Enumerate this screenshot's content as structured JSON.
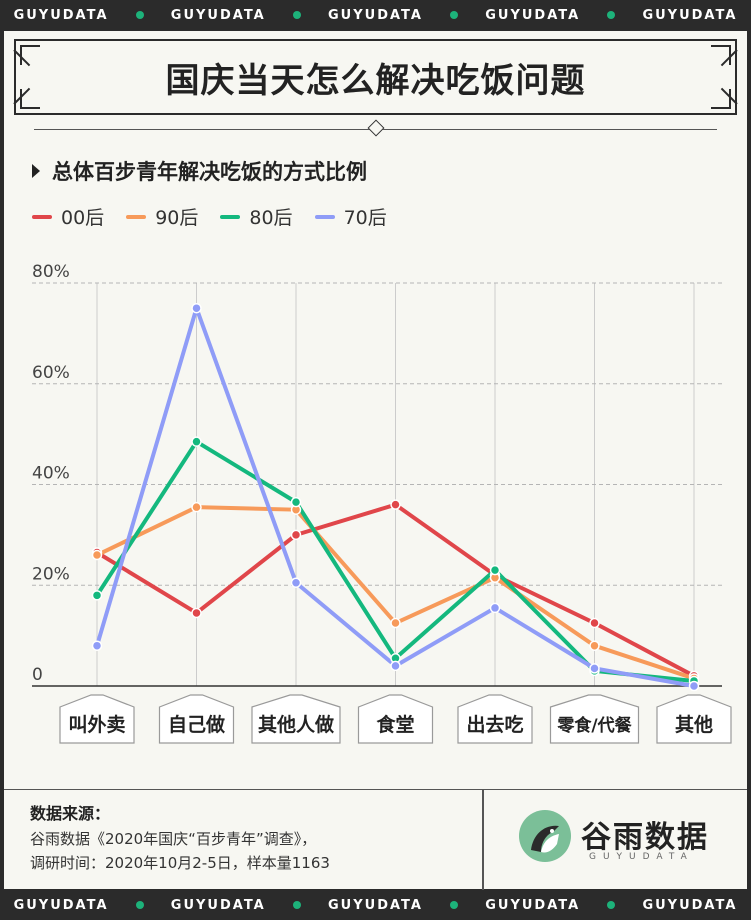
{
  "band": [
    "GUYUDATA",
    "GUYUDATA",
    "GUYUDATA",
    "GUYUDATA",
    "GUYUDATA"
  ],
  "title": "国庆当天怎么解决吃饭问题",
  "subtitle": "总体百步青年解决吃饭的方式比例",
  "colors": {
    "00后": "#e0464a",
    "90后": "#f79a5a",
    "80后": "#14b87e",
    "70后": "#8f9cf7",
    "accent": "#1db27a"
  },
  "source": {
    "heading": "数据来源：",
    "line1": "谷雨数据《2020年国庆“百步青年”调查》，",
    "line2": "调研时间：2020年10月2-5日，样本量1163"
  },
  "brand": {
    "name": "谷雨数据",
    "sub": "GUYUDATA"
  },
  "chart_data": {
    "type": "line",
    "categories": [
      "叫外卖",
      "自己做",
      "其他人做",
      "食堂",
      "出去吃",
      "零食/代餐",
      "其他"
    ],
    "y_ticks": [
      "0",
      "20%",
      "40%",
      "60%",
      "80%"
    ],
    "ylim": [
      0,
      80
    ],
    "grid": true,
    "legend_position": "top-left",
    "series": [
      {
        "name": "00后",
        "values": [
          26.5,
          14.5,
          30,
          36,
          22,
          12.5,
          2
        ]
      },
      {
        "name": "90后",
        "values": [
          26,
          35.5,
          35,
          12.5,
          21.5,
          8,
          1.5
        ]
      },
      {
        "name": "80后",
        "values": [
          18,
          48.5,
          36.5,
          5.5,
          23,
          3,
          1
        ]
      },
      {
        "name": "70后",
        "values": [
          8,
          75,
          20.5,
          4,
          15.5,
          3.5,
          0
        ]
      }
    ]
  }
}
